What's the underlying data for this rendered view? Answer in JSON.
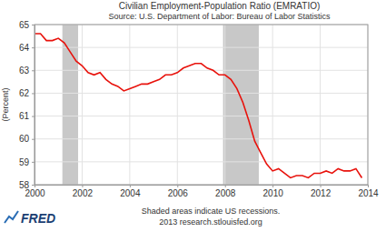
{
  "chart_data": {
    "type": "line",
    "title": "Civilian Employment-Population Ratio (EMRATIO)",
    "subtitle": "Source: U.S. Department of Labor: Bureau of Labor Statistics",
    "y_label": "(Percent)",
    "note": "Shaded areas indicate US recessions.",
    "credit": "2013 research.stlouisfed.org",
    "logo": "FRED",
    "color": "#e8120c",
    "grid": true,
    "xlim": [
      2000,
      2014
    ],
    "xticks": [
      2000,
      2002,
      2004,
      2006,
      2008,
      2010,
      2012,
      2014
    ],
    "ylim": [
      58,
      65
    ],
    "yticks": [
      58,
      59,
      60,
      61,
      62,
      63,
      64,
      65
    ],
    "recessions": [
      {
        "start": 2001.17,
        "end": 2001.83
      },
      {
        "start": 2007.92,
        "end": 2009.42
      }
    ],
    "x": [
      2000.0,
      2000.25,
      2000.5,
      2000.75,
      2001.0,
      2001.25,
      2001.5,
      2001.75,
      2002.0,
      2002.25,
      2002.5,
      2002.75,
      2003.0,
      2003.25,
      2003.5,
      2003.75,
      2004.0,
      2004.25,
      2004.5,
      2004.75,
      2005.0,
      2005.25,
      2005.5,
      2005.75,
      2006.0,
      2006.25,
      2006.5,
      2006.75,
      2007.0,
      2007.25,
      2007.5,
      2007.75,
      2008.0,
      2008.25,
      2008.5,
      2008.75,
      2009.0,
      2009.25,
      2009.5,
      2009.75,
      2010.0,
      2010.25,
      2010.5,
      2010.75,
      2011.0,
      2011.25,
      2011.5,
      2011.75,
      2012.0,
      2012.25,
      2012.5,
      2012.75,
      2013.0,
      2013.25,
      2013.5,
      2013.75
    ],
    "values": [
      64.6,
      64.6,
      64.3,
      64.3,
      64.4,
      64.2,
      63.8,
      63.4,
      63.2,
      62.9,
      62.8,
      62.9,
      62.6,
      62.4,
      62.3,
      62.1,
      62.2,
      62.3,
      62.4,
      62.4,
      62.5,
      62.6,
      62.8,
      62.8,
      62.9,
      63.1,
      63.2,
      63.3,
      63.3,
      63.1,
      63.0,
      62.8,
      62.8,
      62.6,
      62.2,
      61.6,
      60.8,
      59.9,
      59.4,
      58.9,
      58.6,
      58.7,
      58.5,
      58.3,
      58.4,
      58.4,
      58.3,
      58.5,
      58.5,
      58.6,
      58.5,
      58.7,
      58.6,
      58.6,
      58.7,
      58.3
    ]
  }
}
